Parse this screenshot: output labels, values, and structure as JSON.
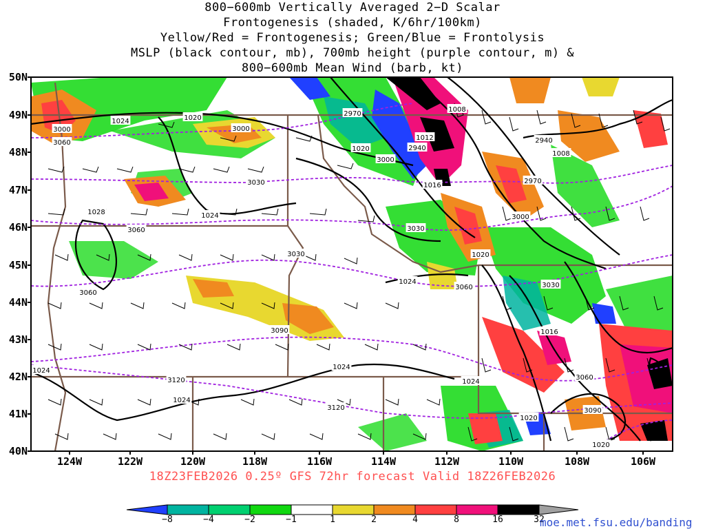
{
  "title": {
    "line1": "800−600mb Vertically Averaged 2−D Scalar",
    "line2": "Frontogenesis (shaded, K/6hr/100km)",
    "line3": "Yellow/Red = Frontogenesis;  Green/Blue = Frontolysis",
    "line4": "MSLP (black contour, mb), 700mb height (purple contour, m) &",
    "line5": "800−600mb Mean Wind (barb, kt)"
  },
  "axes": {
    "lat_labels": [
      "50N",
      "49N",
      "48N",
      "47N",
      "46N",
      "45N",
      "44N",
      "43N",
      "42N",
      "41N",
      "40N"
    ],
    "lon_labels": [
      "124W",
      "122W",
      "120W",
      "118W",
      "116W",
      "114W",
      "112W",
      "110W",
      "108W",
      "106W"
    ]
  },
  "valid_line": "18Z23FEB2026 0.25º GFS 72hr forecast Valid 18Z26FEB2026",
  "colorbar": {
    "labels": [
      "−8",
      "−4",
      "−2",
      "−1",
      "1",
      "2",
      "4",
      "8",
      "16",
      "32"
    ],
    "colors": [
      "#2040ff",
      "#00b4a0",
      "#00d070",
      "#10d810",
      "#ffffff",
      "#e8d830",
      "#f08a20",
      "#ff4040",
      "#f0107a",
      "#000000",
      "#a0a0a0"
    ]
  },
  "contour_labels": {
    "mslp": [
      "1020",
      "1024",
      "1024",
      "1028",
      "1024",
      "1020",
      "1012",
      "1016",
      "1008",
      "1008",
      "1020",
      "1024",
      "1016",
      "1024",
      "1024",
      "1020",
      "1020",
      "1024"
    ],
    "height": [
      "3000",
      "3030",
      "3060",
      "3060",
      "2970",
      "2940",
      "3000",
      "3030",
      "3030",
      "3060",
      "3090",
      "3120",
      "3120",
      "3090",
      "3060",
      "3000",
      "2970",
      "2940",
      "3000",
      "3030",
      "3060"
    ]
  },
  "credit": "moe.met.fsu.edu/banding"
}
